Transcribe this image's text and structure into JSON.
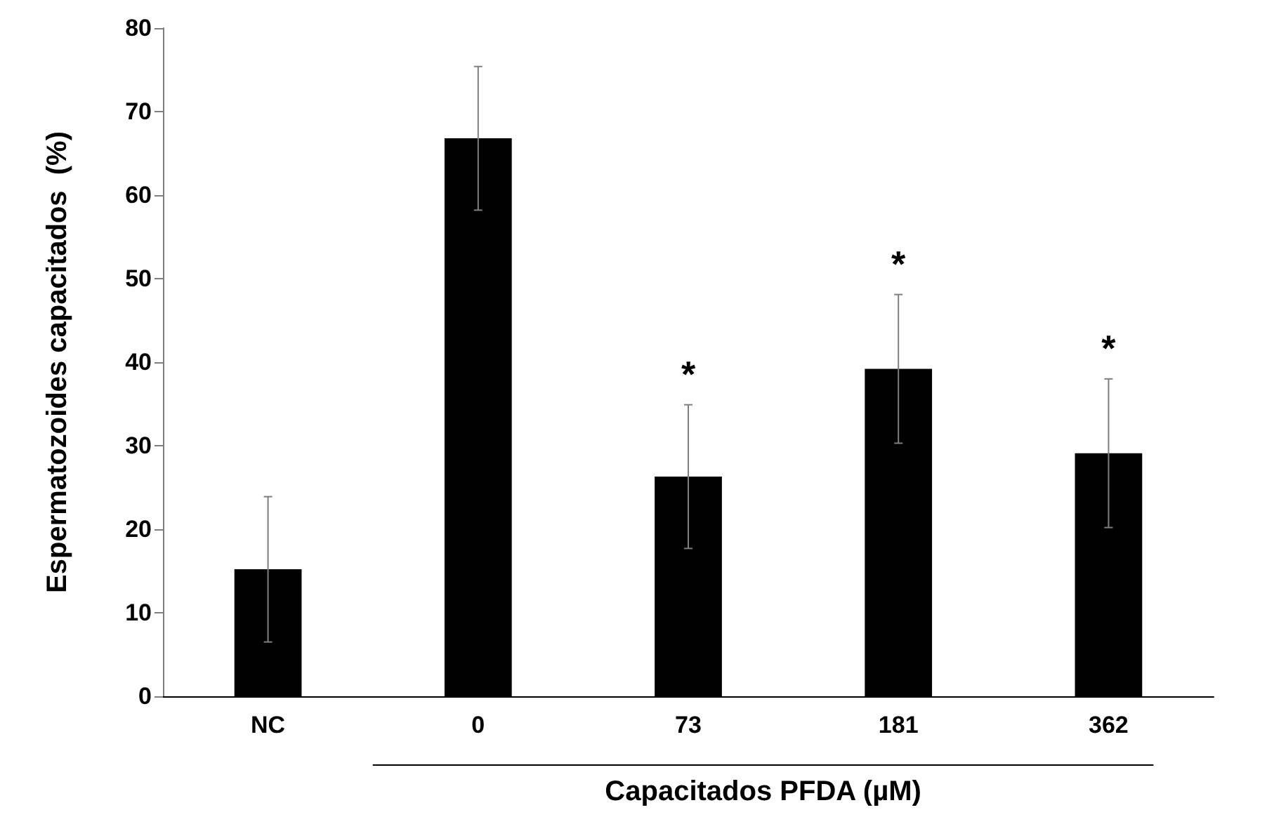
{
  "chart_data": {
    "type": "bar",
    "ylabel": "Espermatozoides capacitados  (%)",
    "xlabel": "Capacitados PFDA (µM)",
    "categories": [
      "NC",
      "0",
      "73",
      "181",
      "362"
    ],
    "values": [
      15.2,
      66.8,
      26.3,
      39.2,
      29.1
    ],
    "errors": [
      8.7,
      8.6,
      8.6,
      8.9,
      8.9
    ],
    "color": "#000000",
    "ylim": [
      0,
      80
    ],
    "yticks": [
      0,
      10,
      20,
      30,
      40,
      50,
      60,
      70,
      80
    ],
    "grid": false,
    "annotations": [
      {
        "text": "*",
        "x": "73",
        "y": 26.3
      },
      {
        "text": "*",
        "x": "181",
        "y": 39.2
      },
      {
        "text": "*",
        "x": "362",
        "y": 29.1
      }
    ]
  }
}
